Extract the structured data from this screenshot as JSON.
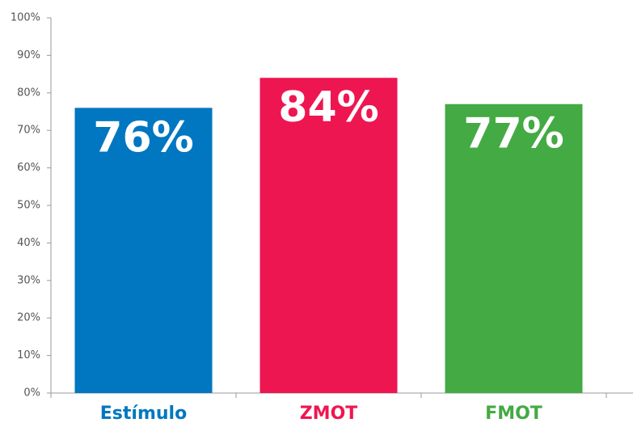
{
  "chart_data": {
    "type": "bar",
    "categories": [
      "Estímulo",
      "ZMOT",
      "FMOT"
    ],
    "values": [
      76,
      84,
      77
    ],
    "value_labels": [
      "76%",
      "84%",
      "77%"
    ],
    "colors": [
      "#0077c0",
      "#ee1650",
      "#44aa44"
    ],
    "ylim": [
      0,
      100
    ],
    "yticks": [
      {
        "value": 0,
        "label": "0%"
      },
      {
        "value": 10,
        "label": "10%"
      },
      {
        "value": 20,
        "label": "20%"
      },
      {
        "value": 30,
        "label": "30%"
      },
      {
        "value": 40,
        "label": "40%"
      },
      {
        "value": 50,
        "label": "50%"
      },
      {
        "value": 60,
        "label": "60%"
      },
      {
        "value": 70,
        "label": "70%"
      },
      {
        "value": 80,
        "label": "80%"
      },
      {
        "value": 90,
        "label": "90%"
      },
      {
        "value": 100,
        "label": "100%"
      }
    ],
    "grid": false
  }
}
